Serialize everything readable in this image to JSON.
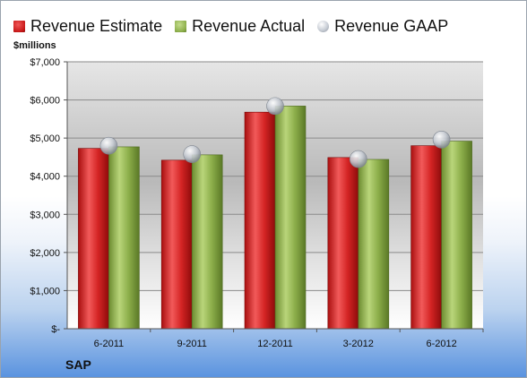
{
  "chart_data": {
    "type": "bar",
    "title": "",
    "ylabel": "$millions",
    "xlabel": "",
    "categories": [
      "6-2011",
      "9-2011",
      "12-2011",
      "3-2012",
      "6-2012"
    ],
    "series": [
      {
        "name": "Revenue Estimate",
        "kind": "bar",
        "color": "#d42a2a",
        "values": [
          4730,
          4420,
          5680,
          4490,
          4800
        ]
      },
      {
        "name": "Revenue Actual",
        "kind": "bar",
        "color": "#8cae4a",
        "values": [
          4770,
          4560,
          5840,
          4440,
          4920
        ]
      },
      {
        "name": "Revenue GAAP",
        "kind": "marker",
        "color": "#c9ced6",
        "values": [
          4800,
          4580,
          5840,
          4450,
          4960
        ]
      }
    ],
    "ylim": [
      0,
      7000
    ],
    "yticks": [
      {
        "value": 0,
        "label": "$-"
      },
      {
        "value": 1000,
        "label": "$1,000"
      },
      {
        "value": 2000,
        "label": "$2,000"
      },
      {
        "value": 3000,
        "label": "$3,000"
      },
      {
        "value": 4000,
        "label": "$4,000"
      },
      {
        "value": 5000,
        "label": "$5,000"
      },
      {
        "value": 6000,
        "label": "$6,000"
      },
      {
        "value": 7000,
        "label": "$7,000"
      }
    ],
    "grid": true,
    "legend_position": "top"
  },
  "legend": {
    "estimate": "Revenue Estimate",
    "actual": "Revenue Actual",
    "gaap": "Revenue GAAP"
  },
  "unit_label": "$millions",
  "company": "SAP"
}
